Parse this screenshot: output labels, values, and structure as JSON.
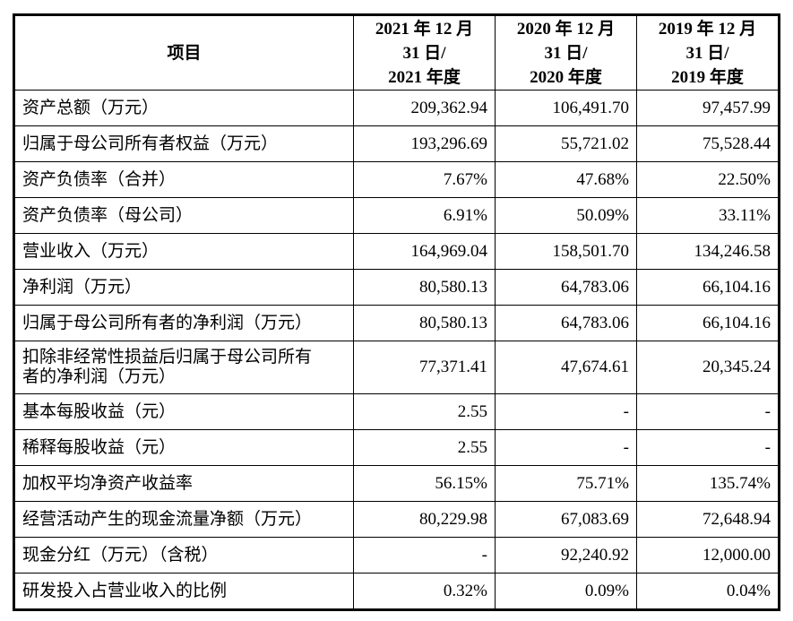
{
  "header": {
    "item": "项目",
    "col1": [
      "2021 年 12 月",
      "31 日/",
      "2021 年度"
    ],
    "col2": [
      "2020 年 12 月",
      "31 日/",
      "2020 年度"
    ],
    "col3": [
      "2019 年 12 月",
      "31 日/",
      "2019 年度"
    ]
  },
  "rows": [
    {
      "label": "资产总额（万元）",
      "v2021": "209,362.94",
      "v2020": "106,491.70",
      "v2019": "97,457.99"
    },
    {
      "label": "归属于母公司所有者权益（万元）",
      "v2021": "193,296.69",
      "v2020": "55,721.02",
      "v2019": "75,528.44"
    },
    {
      "label": "资产负债率（合并）",
      "v2021": "7.67%",
      "v2020": "47.68%",
      "v2019": "22.50%"
    },
    {
      "label": "资产负债率（母公司）",
      "v2021": "6.91%",
      "v2020": "50.09%",
      "v2019": "33.11%"
    },
    {
      "label": "营业收入（万元）",
      "v2021": "164,969.04",
      "v2020": "158,501.70",
      "v2019": "134,246.58"
    },
    {
      "label": "净利润（万元）",
      "v2021": "80,580.13",
      "v2020": "64,783.06",
      "v2019": "66,104.16"
    },
    {
      "label": "归属于母公司所有者的净利润（万元）",
      "v2021": "80,580.13",
      "v2020": "64,783.06",
      "v2019": "66,104.16"
    },
    {
      "label_lines": [
        "扣除非经常性损益后归属于母公司所有",
        "者的净利润（万元）"
      ],
      "v2021": "77,371.41",
      "v2020": "47,674.61",
      "v2019": "20,345.24"
    },
    {
      "label": "基本每股收益（元）",
      "v2021": "2.55",
      "v2020": "-",
      "v2019": "-"
    },
    {
      "label": "稀释每股收益（元）",
      "v2021": "2.55",
      "v2020": "-",
      "v2019": "-"
    },
    {
      "label": "加权平均净资产收益率",
      "v2021": "56.15%",
      "v2020": "75.71%",
      "v2019": "135.74%"
    },
    {
      "label": "经营活动产生的现金流量净额（万元）",
      "v2021": "80,229.98",
      "v2020": "67,083.69",
      "v2019": "72,648.94"
    },
    {
      "label": "现金分红（万元）（含税）",
      "v2021": "-",
      "v2020": "92,240.92",
      "v2019": "12,000.00"
    },
    {
      "label": "研发投入占营业收入的比例",
      "v2021": "0.32%",
      "v2020": "0.09%",
      "v2019": "0.04%"
    }
  ]
}
